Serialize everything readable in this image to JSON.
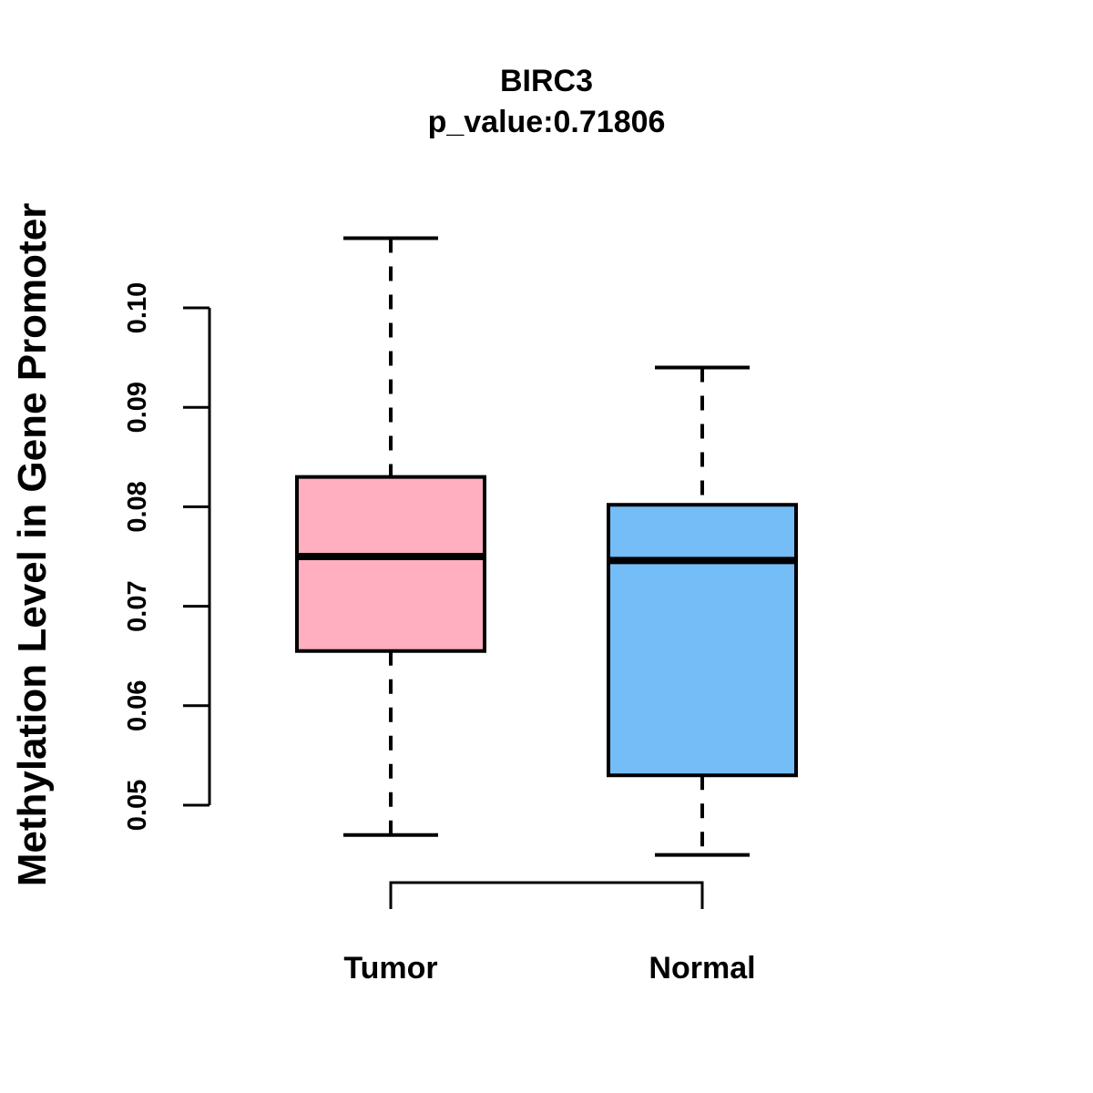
{
  "chart_data": {
    "type": "boxplot",
    "title": "BIRC3",
    "subtitle": "p_value:0.71806",
    "ylabel": "Methylation Level in Gene Promoter",
    "xlabel": "",
    "x_categories": [
      "Tumor",
      "Normal"
    ],
    "y_axis": {
      "min": 0.05,
      "max": 0.1,
      "ticks": [
        {
          "value": 0.05,
          "label": "0.05"
        },
        {
          "value": 0.06,
          "label": "0.06"
        },
        {
          "value": 0.07,
          "label": "0.07"
        },
        {
          "value": 0.08,
          "label": "0.08"
        },
        {
          "value": 0.09,
          "label": "0.09"
        },
        {
          "value": 0.1,
          "label": "0.10"
        }
      ]
    },
    "series": [
      {
        "name": "Tumor",
        "fill_color": "#FFAFC0",
        "whisker_low": 0.047,
        "q1": 0.0655,
        "median": 0.075,
        "q3": 0.083,
        "whisker_high": 0.107
      },
      {
        "name": "Normal",
        "fill_color": "#74BDF7",
        "whisker_low": 0.045,
        "q1": 0.053,
        "median": 0.0746,
        "q3": 0.0802,
        "whisker_high": 0.094
      }
    ],
    "layout_hints": {
      "grid": false,
      "legend": "none",
      "whisker_style": "dashed",
      "stroke_color": "#000000"
    }
  }
}
